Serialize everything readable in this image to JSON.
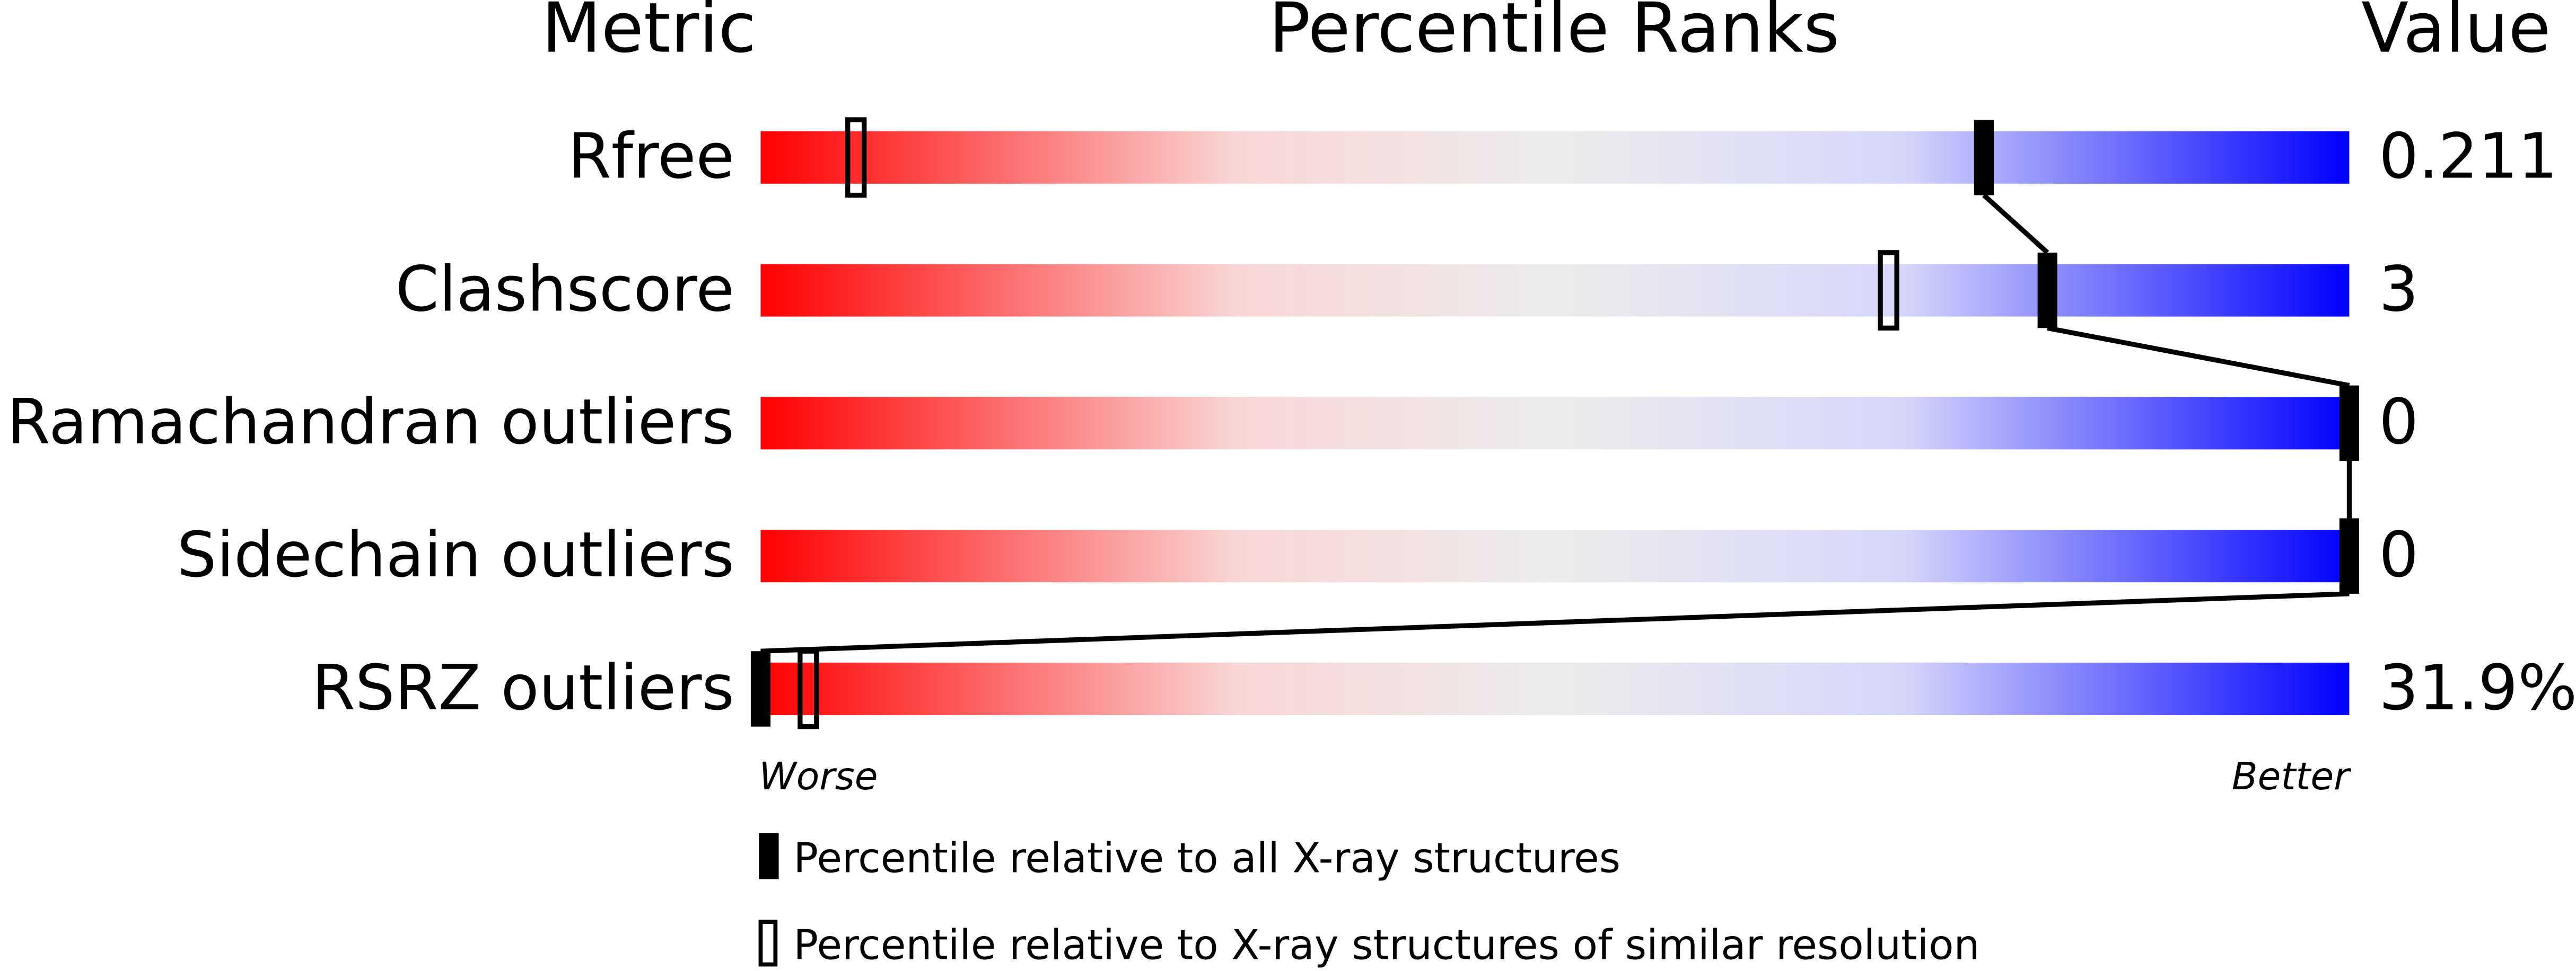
{
  "chart_data": {
    "type": "percentile",
    "headers": [
      "Metric",
      "Percentile Ranks",
      "Value"
    ],
    "categories": [
      "Rfree",
      "Clashscore",
      "Ramachandran outliers",
      "Sidechain outliers",
      "RSRZ outliers"
    ],
    "values": [
      0.211,
      3,
      0,
      0,
      31.9
    ],
    "value_labels": [
      "0.211",
      "3",
      "0",
      "0",
      "31.9%"
    ],
    "series": [
      {
        "name": "Percentile relative to all X-ray structures",
        "style": "filled",
        "color": "#000000",
        "values": [
          77,
          81,
          100,
          100,
          0
        ]
      },
      {
        "name": "Percentile relative to X-ray structures of similar resolution",
        "style": "open",
        "color": "#000000",
        "values": [
          6,
          71,
          null,
          null,
          3
        ]
      }
    ],
    "xlim": [
      0,
      100
    ],
    "axis_ends": [
      "Worse",
      "Better"
    ]
  }
}
